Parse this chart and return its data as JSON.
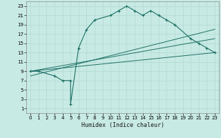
{
  "xlabel": "Humidex (Indice chaleur)",
  "bg_color": "#c8eae4",
  "grid_color": "#b0d8d2",
  "line_color": "#1a6e64",
  "xlim": [
    -0.5,
    23.5
  ],
  "ylim": [
    0,
    24
  ],
  "xticks": [
    0,
    1,
    2,
    3,
    4,
    5,
    6,
    7,
    8,
    9,
    10,
    11,
    12,
    13,
    14,
    15,
    16,
    17,
    18,
    19,
    20,
    21,
    22,
    23
  ],
  "yticks": [
    1,
    3,
    5,
    7,
    9,
    11,
    13,
    15,
    17,
    19,
    21,
    23
  ],
  "series": [
    {
      "x": [
        0,
        1,
        3,
        4,
        5,
        5,
        6,
        7,
        8,
        10,
        11,
        12,
        13,
        14,
        15,
        16,
        17,
        18,
        20,
        21,
        22,
        23
      ],
      "y": [
        9,
        9,
        8,
        7,
        7,
        2,
        14,
        18,
        20,
        21,
        22,
        23,
        22,
        21,
        22,
        21,
        20,
        19,
        16,
        15,
        14,
        13
      ],
      "marker": true
    },
    {
      "x": [
        0,
        23
      ],
      "y": [
        9,
        13
      ],
      "marker": false
    },
    {
      "x": [
        0,
        23
      ],
      "y": [
        9,
        16
      ],
      "marker": false
    },
    {
      "x": [
        0,
        23
      ],
      "y": [
        8,
        18
      ],
      "marker": false
    }
  ]
}
